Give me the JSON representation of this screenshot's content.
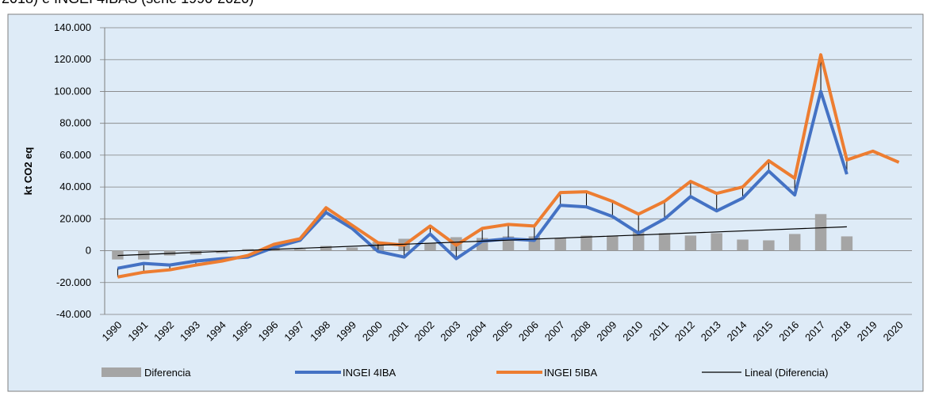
{
  "header": {
    "title": "2018) e INGEI 4IBAS (serie 1990-2020)"
  },
  "chart_data": {
    "type": "combo",
    "y_label": "kt CO2 eq",
    "categories": [
      "1990",
      "1991",
      "1992",
      "1993",
      "1994",
      "1995",
      "1996",
      "1997",
      "1998",
      "1999",
      "2000",
      "2001",
      "2002",
      "2003",
      "2004",
      "2005",
      "2006",
      "2007",
      "2008",
      "2009",
      "2010",
      "2011",
      "2012",
      "2013",
      "2014",
      "2015",
      "2016",
      "2017",
      "2018",
      "2019",
      "2020"
    ],
    "ylim": [
      -40000,
      140000
    ],
    "yticks": [
      {
        "value": -40000,
        "label": "-40.000"
      },
      {
        "value": -20000,
        "label": "-20.000"
      },
      0,
      {
        "value": 20000,
        "label": "20.000"
      },
      {
        "value": 40000,
        "label": "40.000"
      },
      {
        "value": 60000,
        "label": "60.000"
      },
      {
        "value": 80000,
        "label": "80.000"
      },
      {
        "value": 100000,
        "label": "100.000"
      },
      {
        "value": 120000,
        "label": "120.000"
      },
      {
        "value": 140000,
        "label": "140.000"
      }
    ],
    "grid": true,
    "series": [
      {
        "name": "Diferencia",
        "kind": "bar",
        "color": "#a5a5a5",
        "values": [
          -5500,
          -5500,
          -3000,
          -2500,
          -1500,
          1000,
          2000,
          1000,
          3000,
          2000,
          5500,
          7500,
          5000,
          8500,
          8000,
          9000,
          9000,
          8000,
          9500,
          9500,
          12000,
          11000,
          9500,
          11000,
          7000,
          6500,
          10500,
          23000,
          9000,
          null,
          null
        ]
      },
      {
        "name": "INGEI 4IBA",
        "kind": "line",
        "color": "#4472c4",
        "values": [
          -11000,
          -8000,
          -9000,
          -6500,
          -5000,
          -4000,
          2000,
          6500,
          24000,
          14000,
          -500,
          -4000,
          10500,
          -5000,
          6000,
          7500,
          6500,
          28500,
          27500,
          21500,
          11000,
          20000,
          34000,
          25000,
          33000,
          50000,
          35000,
          100000,
          48000,
          null,
          null
        ]
      },
      {
        "name": "INGEI 5IBA",
        "kind": "line",
        "color": "#ed7d31",
        "values": [
          -16500,
          -13500,
          -12000,
          -9000,
          -6500,
          -3000,
          4000,
          7500,
          27000,
          16000,
          5000,
          3500,
          15500,
          3500,
          14000,
          16500,
          15500,
          36500,
          37000,
          31000,
          23000,
          31000,
          43500,
          36000,
          40000,
          56500,
          45500,
          123000,
          57000,
          62500,
          55500
        ]
      }
    ],
    "trend": {
      "name": "Lineal (Diferencia)",
      "color": "#000000",
      "x": [
        "1990",
        "2018"
      ],
      "values": [
        -3000,
        15000
      ]
    }
  }
}
